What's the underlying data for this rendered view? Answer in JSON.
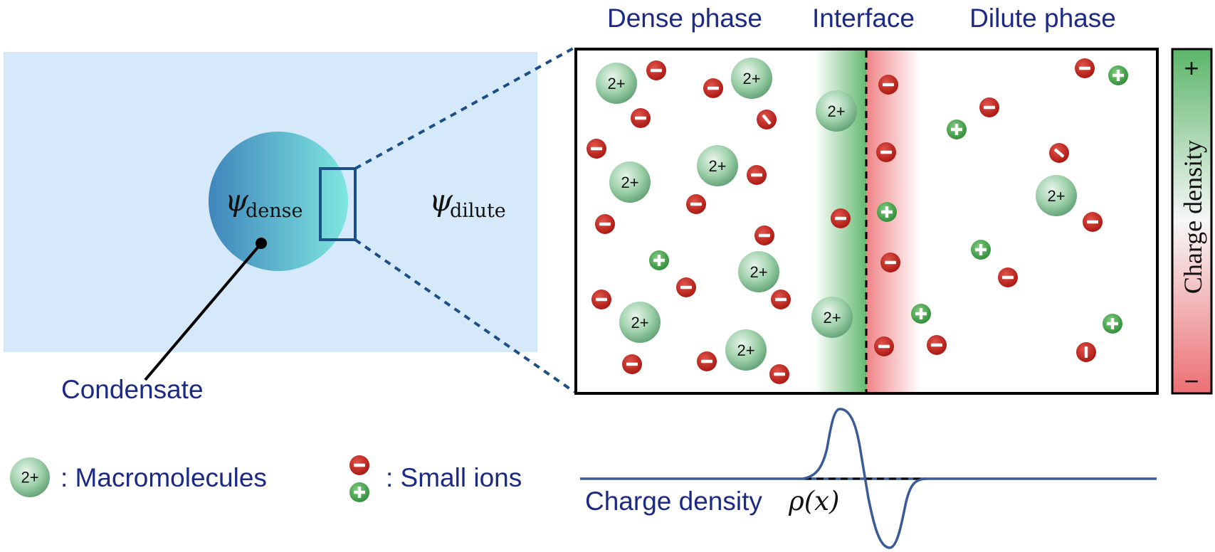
{
  "headers": {
    "dense": "Dense phase",
    "interface": "Interface",
    "dilute": "Dilute phase"
  },
  "left_panel": {
    "psi_symbol": "ψ",
    "psi_dense_sub": "dense",
    "psi_dilute_sub": "dilute",
    "condensate_label": "Condensate"
  },
  "colorbar": {
    "label": "Charge density",
    "plus": "+",
    "minus": "−"
  },
  "profile": {
    "label": "Charge density",
    "rho": "ρ(x)"
  },
  "legend": {
    "macromolecule_glyph": "2+",
    "macromolecule_label": ": Macromolecules",
    "small_ions_label": ": Small ions"
  },
  "macromolecule_charge": "2+",
  "colors": {
    "label_blue": "#1c2a86",
    "dilute_bg": "#d6e9fb",
    "negative_ion": "#c0201c",
    "positive_ion": "#3fa045",
    "macromolecule": "#6fb585"
  }
}
